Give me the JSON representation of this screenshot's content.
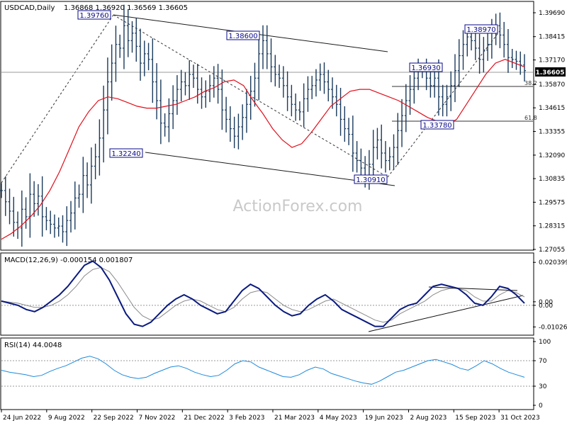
{
  "chart_data": {
    "type": "candlestick",
    "title": "USDCAD,Daily",
    "ohlc_readout": "1.36868 1.36920 1.36569 1.36605",
    "watermark": "ActionForex.com",
    "x_labels": [
      "24 Jun 2022",
      "9 Aug 2022",
      "22 Sep 2022",
      "7 Nov 2022",
      "21 Dec 2022",
      "3 Feb 2023",
      "21 Mar 2023",
      "4 May 2023",
      "19 Jun 2023",
      "2 Aug 2023",
      "15 Sep 2023",
      "31 Oct 2023"
    ],
    "colors": {
      "price": "#1a3a5c",
      "ma": "#e0101c",
      "macd": "#0a1a80",
      "signal": "#8a8a8a",
      "rsi": "#1e8adc",
      "annot": "#0a0a8a"
    },
    "main_panel": {
      "y_ticks": [
        "1.39690",
        "1.38415",
        "1.37170",
        "1.35870",
        "1.34615",
        "1.33355",
        "1.32090",
        "1.30835",
        "1.29575",
        "1.28315",
        "1.27055"
      ],
      "ylim": [
        1.27055,
        1.3969
      ],
      "current_price": "1.36605",
      "series": [
        {
          "name": "price",
          "values": [
            1.302,
            1.296,
            1.291,
            1.285,
            1.282,
            1.292,
            1.288,
            1.3,
            1.295,
            1.299,
            1.288,
            1.286,
            1.284,
            1.282,
            1.283,
            1.28,
            1.286,
            1.29,
            1.298,
            1.3,
            1.31,
            1.305,
            1.315,
            1.32,
            1.33,
            1.345,
            1.36,
            1.37,
            1.38,
            1.378,
            1.39,
            1.382,
            1.386,
            1.379,
            1.37,
            1.375,
            1.372,
            1.36,
            1.35,
            1.338,
            1.336,
            1.343,
            1.35,
            1.356,
            1.36,
            1.358,
            1.364,
            1.362,
            1.356,
            1.352,
            1.355,
            1.358,
            1.362,
            1.356,
            1.345,
            1.34,
            1.335,
            1.331,
            1.336,
            1.341,
            1.348,
            1.355,
            1.362,
            1.375,
            1.382,
            1.375,
            1.368,
            1.364,
            1.362,
            1.358,
            1.352,
            1.348,
            1.345,
            1.344,
            1.351,
            1.356,
            1.358,
            1.361,
            1.364,
            1.36,
            1.356,
            1.352,
            1.348,
            1.34,
            1.335,
            1.332,
            1.322,
            1.318,
            1.314,
            1.31,
            1.316,
            1.325,
            1.329,
            1.322,
            1.318,
            1.32,
            1.325,
            1.334,
            1.342,
            1.35,
            1.356,
            1.362,
            1.366,
            1.366,
            1.362,
            1.358,
            1.362,
            1.352,
            1.348,
            1.352,
            1.358,
            1.366,
            1.374,
            1.38,
            1.384,
            1.382,
            1.378,
            1.372,
            1.377,
            1.38,
            1.386,
            1.39,
            1.385,
            1.38,
            1.373,
            1.372,
            1.371,
            1.369,
            1.366
          ]
        },
        {
          "name": "ma",
          "values": [
            1.276,
            1.279,
            1.283,
            1.288,
            1.294,
            1.302,
            1.312,
            1.324,
            1.336,
            1.344,
            1.35,
            1.352,
            1.351,
            1.349,
            1.347,
            1.346,
            1.346,
            1.347,
            1.348,
            1.35,
            1.352,
            1.355,
            1.357,
            1.36,
            1.361,
            1.358,
            1.35,
            1.343,
            1.335,
            1.329,
            1.325,
            1.327,
            1.333,
            1.34,
            1.347,
            1.351,
            1.355,
            1.356,
            1.356,
            1.354,
            1.352,
            1.35,
            1.347,
            1.344,
            1.341,
            1.339,
            1.337,
            1.34,
            1.348,
            1.356,
            1.364,
            1.37,
            1.372,
            1.37,
            1.368
          ]
        }
      ],
      "annotations": [
        {
          "label": "1.39760",
          "value": 1.3976
        },
        {
          "label": "1.38600",
          "value": 1.386
        },
        {
          "label": "1.32240",
          "value": 1.3224
        },
        {
          "label": "1.30910",
          "value": 1.3091
        },
        {
          "label": "1.36930",
          "value": 1.3693
        },
        {
          "label": "1.33780",
          "value": 1.3378
        },
        {
          "label": "1.38970",
          "value": 1.3897
        }
      ],
      "fib_labels": [
        {
          "label": "38.2",
          "value": 1.3595
        },
        {
          "label": "61.8",
          "value": 1.3418
        }
      ]
    },
    "macd_panel": {
      "title": "MACD(12,26,9) -0.000154 0.001807",
      "y_ticks": [
        "0.020399",
        "0.00",
        "0.00",
        "-0.01026"
      ],
      "ylim": [
        -0.0135,
        0.0225
      ],
      "series": [
        {
          "name": "macd",
          "values": [
            0.002,
            0.001,
            0.0,
            -0.002,
            -0.003,
            -0.001,
            0.002,
            0.005,
            0.009,
            0.014,
            0.019,
            0.021,
            0.018,
            0.012,
            0.004,
            -0.004,
            -0.009,
            -0.01,
            -0.008,
            -0.004,
            0.0,
            0.003,
            0.005,
            0.003,
            0.0,
            -0.002,
            -0.004,
            -0.003,
            0.002,
            0.007,
            0.01,
            0.008,
            0.004,
            0.0,
            -0.003,
            -0.005,
            -0.004,
            0.0,
            0.003,
            0.005,
            0.002,
            -0.002,
            -0.004,
            -0.006,
            -0.008,
            -0.01,
            -0.01,
            -0.006,
            -0.002,
            0.0,
            0.001,
            0.005,
            0.009,
            0.01,
            0.009,
            0.008,
            0.005,
            0.001,
            0.0,
            0.004,
            0.009,
            0.008,
            0.005,
            0.001
          ]
        },
        {
          "name": "signal",
          "values": [
            0.002,
            0.0015,
            0.001,
            0.0,
            -0.001,
            -0.001,
            0.0,
            0.002,
            0.005,
            0.009,
            0.014,
            0.017,
            0.018,
            0.016,
            0.011,
            0.005,
            -0.001,
            -0.005,
            -0.007,
            -0.006,
            -0.003,
            0.0,
            0.002,
            0.003,
            0.002,
            0.0,
            -0.002,
            -0.003,
            -0.001,
            0.003,
            0.006,
            0.007,
            0.006,
            0.003,
            0.0,
            -0.002,
            -0.003,
            -0.002,
            0.0,
            0.002,
            0.003,
            0.001,
            -0.001,
            -0.003,
            -0.005,
            -0.007,
            -0.008,
            -0.007,
            -0.004,
            -0.002,
            0.0,
            0.002,
            0.005,
            0.007,
            0.008,
            0.008,
            0.007,
            0.004,
            0.002,
            0.002,
            0.005,
            0.007,
            0.006,
            0.004
          ]
        }
      ]
    },
    "rsi_panel": {
      "title": "RSI(14) 44.0048",
      "y_ticks": [
        "100",
        "70",
        "30",
        "0"
      ],
      "ylim": [
        0,
        100
      ],
      "levels": [
        70,
        30
      ],
      "series": [
        {
          "name": "rsi",
          "values": [
            55,
            52,
            50,
            48,
            45,
            47,
            53,
            58,
            62,
            68,
            74,
            77,
            73,
            65,
            55,
            48,
            44,
            42,
            44,
            50,
            55,
            60,
            62,
            58,
            52,
            48,
            45,
            47,
            55,
            65,
            70,
            68,
            60,
            55,
            50,
            45,
            44,
            48,
            55,
            60,
            57,
            50,
            46,
            42,
            38,
            35,
            33,
            38,
            45,
            52,
            55,
            60,
            65,
            70,
            72,
            68,
            64,
            58,
            55,
            62,
            70,
            65,
            58,
            52,
            48,
            44
          ]
        }
      ]
    }
  }
}
